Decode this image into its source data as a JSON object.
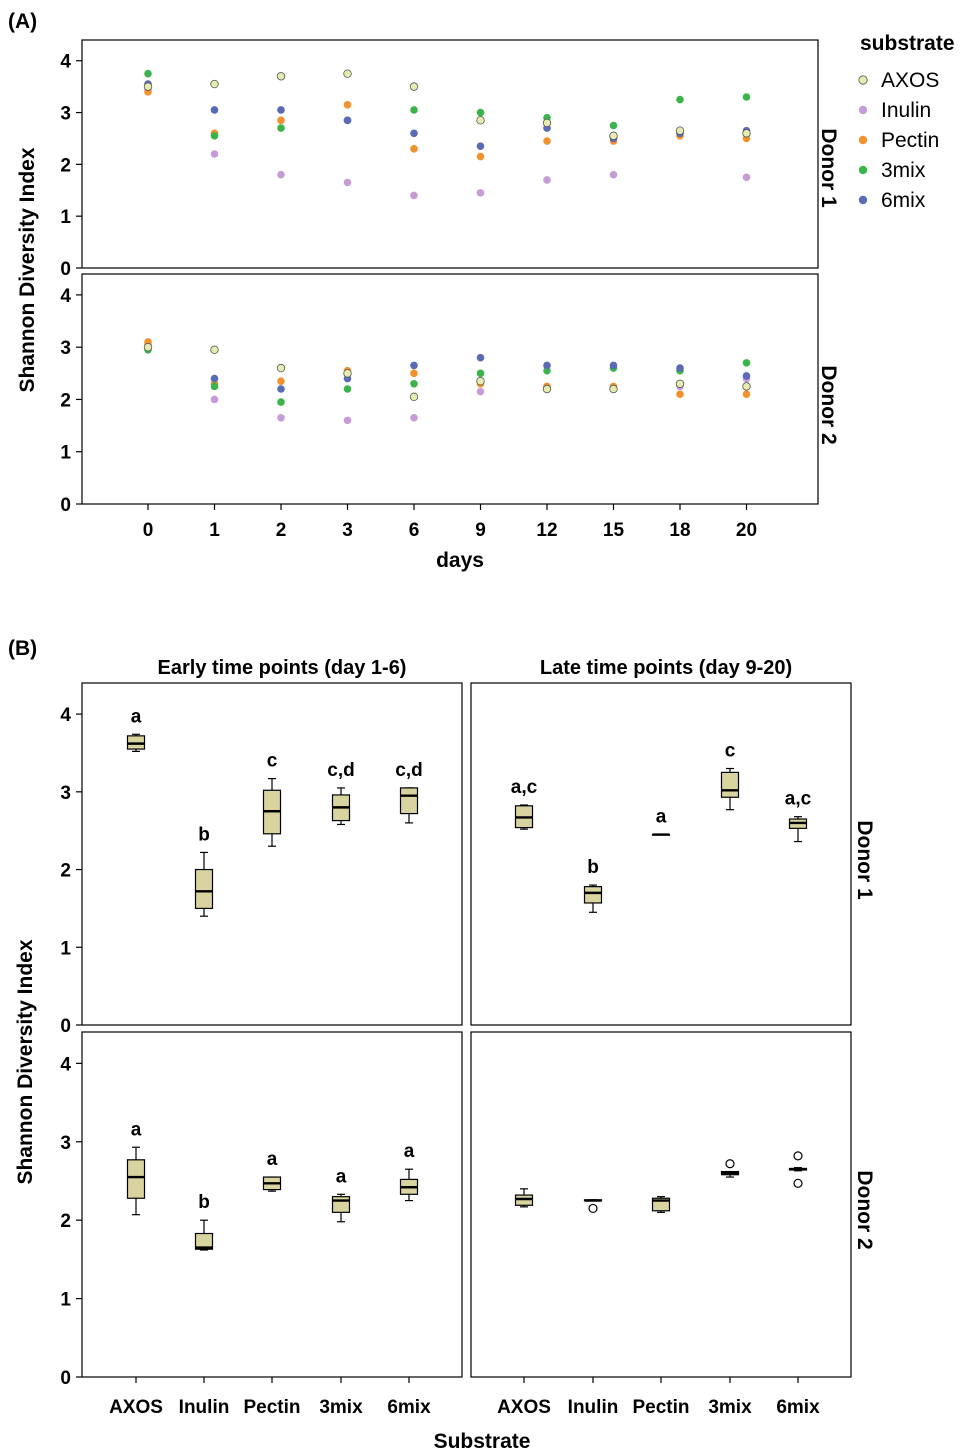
{
  "colors": {
    "AXOS": "#e6ecb0",
    "Inulin": "#c69bd6",
    "Pectin": "#f2922e",
    "3mix": "#3bb54a",
    "6mix": "#5a6ab5",
    "box_fill": "#d9d3a0",
    "frame": "#000000"
  },
  "panel_a": {
    "label": "(A)",
    "ylabel": "Shannon Diversity Index",
    "xlabel": "days",
    "legend_title": "substrate",
    "legend_items": [
      "AXOS",
      "Inulin",
      "Pectin",
      "3mix",
      "6mix"
    ],
    "facets": [
      "Donor 1",
      "Donor 2"
    ]
  },
  "panel_b": {
    "label": "(B)",
    "ylabel": "Shannon Diversity Index",
    "xlabel": "Substrate",
    "col_titles": [
      "Early time points (day 1-6)",
      "Late time points (day 9-20)"
    ],
    "row_strips": [
      "Donor 1",
      "Donor 2"
    ]
  },
  "chart_data": [
    {
      "type": "scatter",
      "panel": "(A)",
      "xlabel": "days",
      "ylabel": "Shannon Diversity Index",
      "x": [
        "0",
        "1",
        "2",
        "3",
        "6",
        "9",
        "12",
        "15",
        "18",
        "20"
      ],
      "ylim": [
        0,
        4.4
      ],
      "yticks": [
        0,
        1,
        2,
        3,
        4
      ],
      "legend_title": "substrate",
      "legend_position": "top-right",
      "facets": [
        {
          "name": "Donor 1",
          "series": [
            {
              "name": "AXOS",
              "values": [
                3.5,
                3.55,
                3.7,
                3.75,
                3.5,
                2.85,
                2.8,
                2.55,
                2.65,
                2.6
              ]
            },
            {
              "name": "Inulin",
              "values": [
                3.45,
                2.2,
                1.8,
                1.65,
                1.4,
                1.45,
                1.7,
                1.8,
                2.6,
                1.75
              ]
            },
            {
              "name": "Pectin",
              "values": [
                3.4,
                2.6,
                2.85,
                3.15,
                2.3,
                2.15,
                2.45,
                2.45,
                2.55,
                2.5
              ]
            },
            {
              "name": "3mix",
              "values": [
                3.75,
                2.55,
                2.7,
                2.85,
                3.05,
                3.0,
                2.9,
                2.75,
                3.25,
                3.3
              ]
            },
            {
              "name": "6mix",
              "values": [
                3.55,
                3.05,
                3.05,
                2.85,
                2.6,
                2.35,
                2.7,
                2.5,
                2.6,
                2.65
              ]
            }
          ]
        },
        {
          "name": "Donor 2",
          "series": [
            {
              "name": "AXOS",
              "values": [
                3.0,
                2.95,
                2.6,
                2.5,
                2.05,
                2.35,
                2.2,
                2.2,
                2.3,
                2.25
              ]
            },
            {
              "name": "Inulin",
              "values": [
                3.05,
                2.0,
                1.65,
                1.6,
                1.65,
                2.15,
                2.25,
                2.2,
                2.25,
                2.4
              ]
            },
            {
              "name": "Pectin",
              "values": [
                3.1,
                2.3,
                2.35,
                2.55,
                2.5,
                2.3,
                2.25,
                2.25,
                2.1,
                2.1
              ]
            },
            {
              "name": "3mix",
              "values": [
                2.95,
                2.25,
                1.95,
                2.2,
                2.3,
                2.5,
                2.55,
                2.6,
                2.55,
                2.7
              ]
            },
            {
              "name": "6mix",
              "values": [
                3.0,
                2.4,
                2.2,
                2.4,
                2.65,
                2.8,
                2.65,
                2.65,
                2.6,
                2.45
              ]
            }
          ]
        }
      ]
    },
    {
      "type": "box",
      "panel": "(B)",
      "xlabel": "Substrate",
      "ylabel": "Shannon Diversity Index",
      "categories": [
        "AXOS",
        "Inulin",
        "Pectin",
        "3mix",
        "6mix"
      ],
      "ylim": [
        0,
        4.4
      ],
      "yticks": [
        0,
        1,
        2,
        3,
        4
      ],
      "facets": [
        {
          "row": "Donor 1",
          "col": "Early time points (day 1-6)",
          "boxes": [
            {
              "category": "AXOS",
              "min": 3.52,
              "q1": 3.55,
              "median": 3.62,
              "q3": 3.72,
              "max": 3.74,
              "label": "a"
            },
            {
              "category": "Inulin",
              "min": 1.4,
              "q1": 1.5,
              "median": 1.72,
              "q3": 2.0,
              "max": 2.22,
              "label": "b"
            },
            {
              "category": "Pectin",
              "min": 2.3,
              "q1": 2.46,
              "median": 2.75,
              "q3": 3.02,
              "max": 3.17,
              "label": "c"
            },
            {
              "category": "3mix",
              "min": 2.58,
              "q1": 2.63,
              "median": 2.8,
              "q3": 2.96,
              "max": 3.05,
              "label": "c,d"
            },
            {
              "category": "6mix",
              "min": 2.6,
              "q1": 2.72,
              "median": 2.95,
              "q3": 3.05,
              "max": 3.05,
              "label": "c,d"
            }
          ]
        },
        {
          "row": "Donor 1",
          "col": "Late time points (day 9-20)",
          "boxes": [
            {
              "category": "AXOS",
              "min": 2.52,
              "q1": 2.54,
              "median": 2.67,
              "q3": 2.82,
              "max": 2.83,
              "label": "a,c"
            },
            {
              "category": "Inulin",
              "min": 1.45,
              "q1": 1.57,
              "median": 1.7,
              "q3": 1.78,
              "max": 1.8,
              "label": "b"
            },
            {
              "category": "Pectin",
              "min": 2.45,
              "q1": 2.45,
              "median": 2.45,
              "q3": 2.45,
              "max": 2.45,
              "label": "a"
            },
            {
              "category": "3mix",
              "min": 2.77,
              "q1": 2.93,
              "median": 3.02,
              "q3": 3.25,
              "max": 3.3,
              "label": "c"
            },
            {
              "category": "6mix",
              "min": 2.36,
              "q1": 2.53,
              "median": 2.6,
              "q3": 2.65,
              "max": 2.68,
              "label": "a,c"
            }
          ]
        },
        {
          "row": "Donor 2",
          "col": "Early time points (day 1-6)",
          "boxes": [
            {
              "category": "AXOS",
              "min": 2.07,
              "q1": 2.28,
              "median": 2.55,
              "q3": 2.77,
              "max": 2.93,
              "label": "a"
            },
            {
              "category": "Inulin",
              "min": 1.62,
              "q1": 1.63,
              "median": 1.65,
              "q3": 1.83,
              "max": 2.0,
              "label": "b"
            },
            {
              "category": "Pectin",
              "min": 2.37,
              "q1": 2.39,
              "median": 2.47,
              "q3": 2.55,
              "max": 2.55,
              "label": "a"
            },
            {
              "category": "3mix",
              "min": 1.98,
              "q1": 2.1,
              "median": 2.25,
              "q3": 2.3,
              "max": 2.33,
              "label": "a"
            },
            {
              "category": "6mix",
              "min": 2.25,
              "q1": 2.33,
              "median": 2.42,
              "q3": 2.52,
              "max": 2.65,
              "label": "a"
            }
          ]
        },
        {
          "row": "Donor 2",
          "col": "Late time points (day 9-20)",
          "boxes": [
            {
              "category": "AXOS",
              "min": 2.17,
              "q1": 2.19,
              "median": 2.27,
              "q3": 2.32,
              "max": 2.4,
              "outliers": [],
              "label": ""
            },
            {
              "category": "Inulin",
              "min": 2.25,
              "q1": 2.25,
              "median": 2.25,
              "q3": 2.26,
              "max": 2.26,
              "outliers": [
                2.15
              ],
              "label": ""
            },
            {
              "category": "Pectin",
              "min": 2.1,
              "q1": 2.12,
              "median": 2.25,
              "q3": 2.28,
              "max": 2.3,
              "outliers": [],
              "label": ""
            },
            {
              "category": "3mix",
              "min": 2.55,
              "q1": 2.58,
              "median": 2.6,
              "q3": 2.62,
              "max": 2.62,
              "outliers": [
                2.72
              ],
              "label": ""
            },
            {
              "category": "6mix",
              "min": 2.63,
              "q1": 2.64,
              "median": 2.65,
              "q3": 2.66,
              "max": 2.67,
              "outliers": [
                2.82,
                2.47
              ],
              "label": ""
            }
          ]
        }
      ]
    }
  ]
}
